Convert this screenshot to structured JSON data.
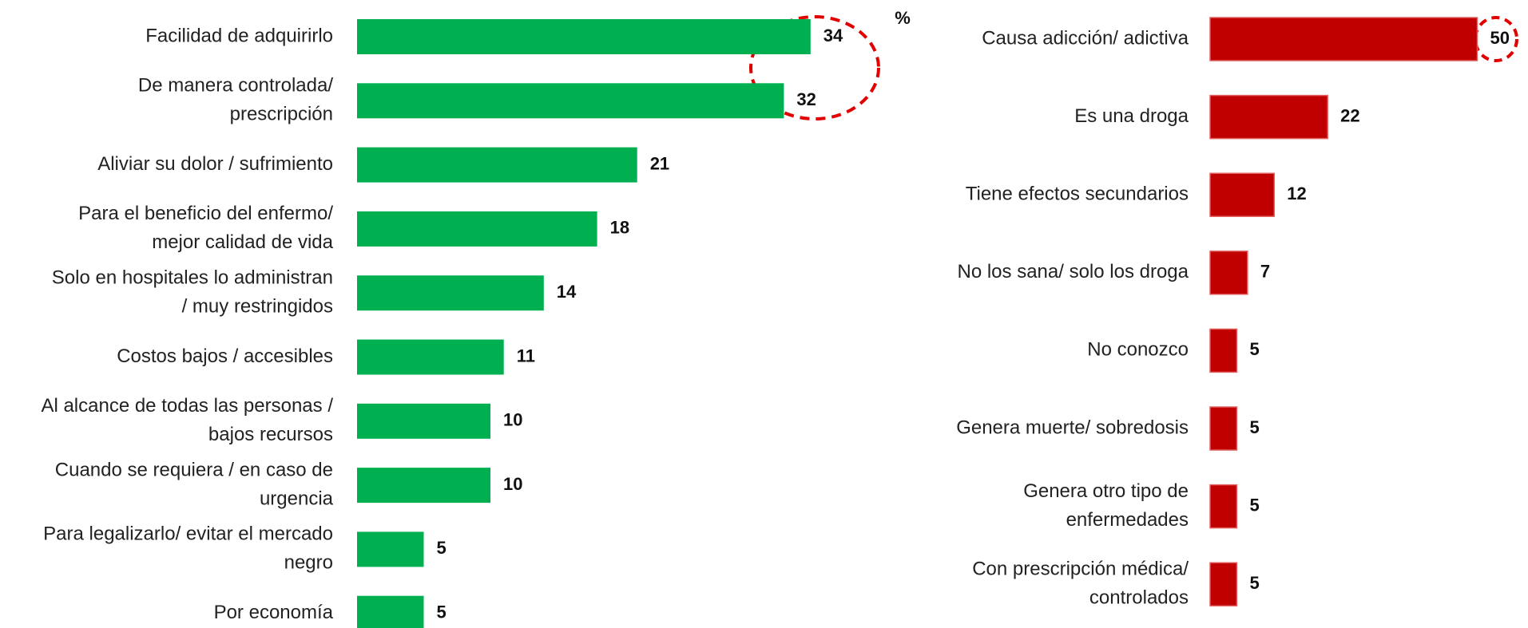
{
  "chart_data": [
    {
      "type": "bar",
      "orientation": "horizontal",
      "color": "#00b050",
      "unit": "%",
      "categories": [
        [
          "Facilidad de adquirirlo"
        ],
        [
          "De manera controlada/",
          "prescripción"
        ],
        [
          "Aliviar su dolor / sufrimiento"
        ],
        [
          "Para el beneficio del enfermo/",
          "mejor calidad de vida"
        ],
        [
          "Solo en hospitales lo administran",
          "/ muy restringidos"
        ],
        [
          "Costos bajos / accesibles"
        ],
        [
          "Al alcance de todas las personas /",
          "bajos recursos"
        ],
        [
          "Cuando se requiera / en caso de",
          "urgencia"
        ],
        [
          "Para legalizarlo/ evitar el mercado",
          "negro"
        ],
        [
          "Por economía"
        ]
      ],
      "values": [
        34,
        32,
        21,
        18,
        14,
        11,
        10,
        10,
        5,
        5
      ]
    },
    {
      "type": "bar",
      "orientation": "horizontal",
      "color": "#c00000",
      "categories": [
        [
          "Causa adicción/ adictiva"
        ],
        [
          "Es una droga"
        ],
        [
          "Tiene efectos secundarios"
        ],
        [
          "No los sana/ solo los droga"
        ],
        [
          "No conozco"
        ],
        [
          "Genera muerte/ sobredosis"
        ],
        [
          "Genera otro tipo de",
          "enfermedades"
        ],
        [
          "Con prescripción médica/",
          "controlados"
        ]
      ],
      "values": [
        50,
        22,
        12,
        7,
        5,
        5,
        5,
        5
      ]
    }
  ]
}
